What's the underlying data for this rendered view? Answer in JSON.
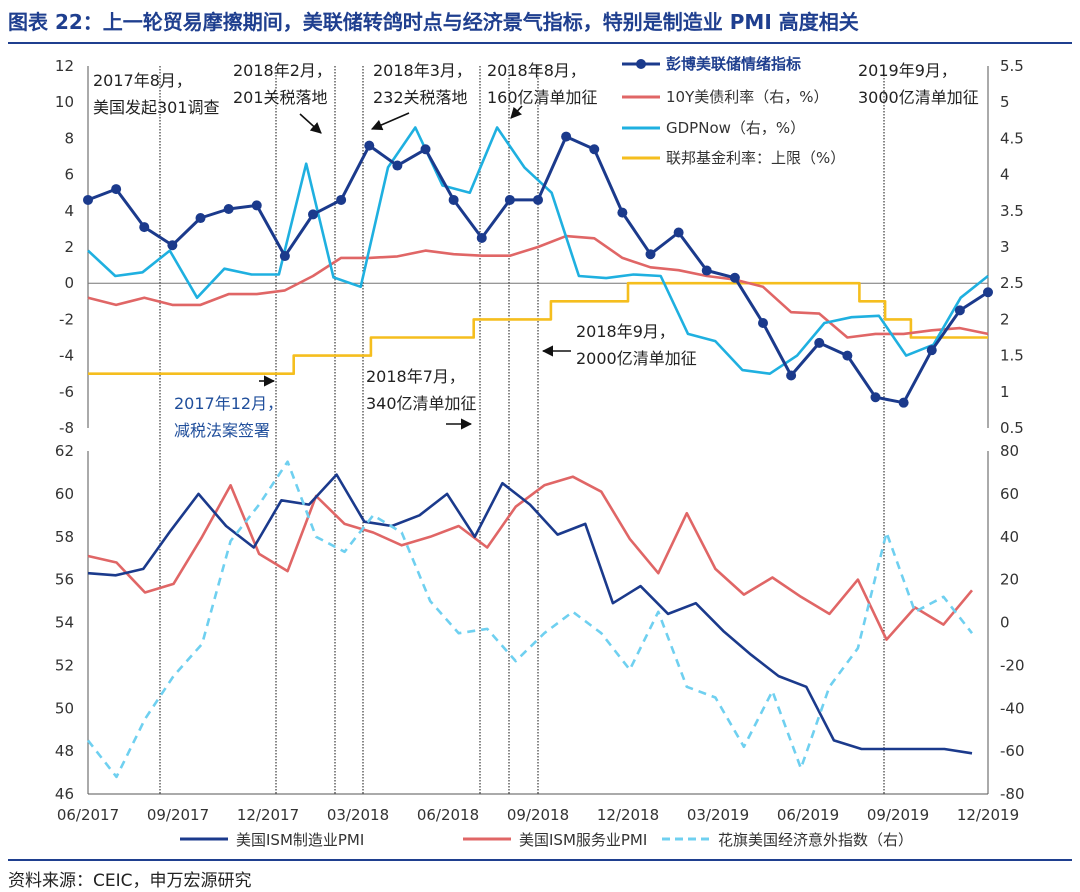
{
  "title": "图表 22：上一轮贸易摩擦期间，美联储转鸽时点与经济景气指标，特别是制造业 PMI 高度相关",
  "source": "资料来源：CEIC，申万宏源研究",
  "colors": {
    "navy": "#1b3a8c",
    "red": "#e06666",
    "cyan": "#1fb0e0",
    "gold": "#f5be1e",
    "lightcyan": "#6fd0f0",
    "title": "#1f3f8f",
    "axis": "#333333"
  },
  "chart_data": [
    {
      "id": "top",
      "type": "line",
      "x_tick_labels": [
        "06/2017",
        "09/2017",
        "12/2017",
        "03/2018",
        "06/2018",
        "09/2018",
        "12/2018",
        "03/2019",
        "06/2019",
        "09/2019",
        "12/2019"
      ],
      "y_left": {
        "min": -8,
        "max": 12,
        "step": 2,
        "ticks": [
          "-8",
          "-6",
          "-4",
          "-2",
          "0",
          "2",
          "4",
          "6",
          "8",
          "10",
          "12"
        ]
      },
      "y_right": {
        "min": 0.5,
        "max": 5.5,
        "step": 0.5,
        "ticks": [
          "0.5",
          "1",
          "1.5",
          "2",
          "2.5",
          "3",
          "3.5",
          "4",
          "4.5",
          "5",
          "5.5"
        ]
      },
      "series": [
        {
          "name": "彭博美联储情绪指标",
          "color": "navy",
          "axis": "left",
          "marker": true,
          "bold": true,
          "values": [
            4.6,
            5.2,
            3.1,
            2.1,
            3.6,
            4.1,
            4.3,
            1.5,
            3.8,
            4.6,
            7.6,
            6.5,
            7.4,
            4.6,
            2.5,
            4.6,
            4.6,
            8.1,
            7.4,
            3.9,
            1.6,
            2.8,
            0.7,
            0.3,
            -2.2,
            -5.1,
            -3.3,
            -4.0,
            -6.3,
            -6.6,
            -3.7,
            -1.5,
            -0.5
          ]
        },
        {
          "name": "10Y美债利率（右，%）",
          "color": "red",
          "axis": "right",
          "values": [
            2.3,
            2.2,
            2.3,
            2.2,
            2.2,
            2.35,
            2.35,
            2.4,
            2.6,
            2.85,
            2.85,
            2.87,
            2.95,
            2.9,
            2.88,
            2.88,
            3.0,
            3.15,
            3.12,
            2.85,
            2.72,
            2.68,
            2.6,
            2.55,
            2.45,
            2.1,
            2.08,
            1.75,
            1.8,
            1.8,
            1.85,
            1.88,
            1.8
          ]
        },
        {
          "name": "GDPNow（右，%）",
          "color": "cyan",
          "axis": "right",
          "values": [
            2.95,
            2.6,
            2.65,
            2.95,
            2.3,
            2.7,
            2.62,
            2.62,
            4.15,
            2.58,
            2.45,
            4.1,
            4.65,
            3.85,
            3.75,
            4.65,
            4.1,
            3.75,
            2.6,
            2.57,
            2.62,
            2.6,
            1.8,
            1.7,
            1.3,
            1.25,
            1.5,
            1.95,
            2.03,
            2.05,
            1.5,
            1.65,
            2.3,
            2.6
          ]
        },
        {
          "name": "联邦基金利率：上限（%）",
          "color": "gold",
          "axis": "right",
          "step": true,
          "values": [
            1.25,
            1.25,
            1.25,
            1.25,
            1.25,
            1.25,
            1.25,
            1.25,
            1.5,
            1.5,
            1.5,
            1.75,
            1.75,
            1.75,
            1.75,
            2.0,
            2.0,
            2.0,
            2.25,
            2.25,
            2.25,
            2.5,
            2.5,
            2.5,
            2.5,
            2.5,
            2.5,
            2.5,
            2.5,
            2.5,
            2.25,
            2.0,
            1.75,
            1.75,
            1.75,
            1.75
          ]
        }
      ],
      "legend": [
        "彭博美联储情绪指标",
        "10Y美债利率（右，%）",
        "GDPNow（右，%）",
        "联邦基金利率：上限（%）"
      ],
      "legend_position": "top-right",
      "annotations": [
        {
          "lines": [
            "2017年8月，",
            "美国发起301调查"
          ],
          "color": "#222222"
        },
        {
          "lines": [
            "2018年2月，",
            "201关税落地"
          ],
          "color": "#222222"
        },
        {
          "lines": [
            "2018年3月，",
            "232关税落地"
          ],
          "color": "#222222"
        },
        {
          "lines": [
            "2018年8月，",
            "160亿清单加征"
          ],
          "color": "#222222"
        },
        {
          "lines": [
            "2019年9月，",
            "3000亿清单加征"
          ],
          "color": "#222222"
        },
        {
          "lines": [
            "2018年9月，",
            "2000亿清单加征"
          ],
          "color": "#222222"
        },
        {
          "lines": [
            "2018年7月，",
            "340亿清单加征"
          ],
          "color": "#222222"
        },
        {
          "lines": [
            "2017年12月，",
            "减税法案签署"
          ],
          "color": "#1f4e9b"
        }
      ]
    },
    {
      "id": "bottom",
      "type": "line",
      "x_tick_labels": [
        "06/2017",
        "09/2017",
        "12/2017",
        "03/2018",
        "06/2018",
        "09/2018",
        "12/2018",
        "03/2019",
        "06/2019",
        "09/2019",
        "12/2019"
      ],
      "y_left": {
        "min": 46,
        "max": 62,
        "step": 2,
        "ticks": [
          "46",
          "48",
          "50",
          "52",
          "54",
          "56",
          "58",
          "60",
          "62"
        ]
      },
      "y_right": {
        "min": -80,
        "max": 80,
        "step": 20,
        "ticks": [
          "-80",
          "-60",
          "-40",
          "-20",
          "0",
          "20",
          "40",
          "60",
          "80"
        ]
      },
      "series": [
        {
          "name": "美国ISM制造业PMI",
          "color": "navy",
          "axis": "left",
          "values": [
            56.3,
            56.2,
            56.5,
            58.3,
            60.0,
            58.5,
            57.5,
            59.7,
            59.5,
            60.9,
            58.7,
            58.5,
            59.0,
            60.0,
            58.0,
            60.5,
            59.5,
            58.1,
            58.6,
            54.9,
            55.7,
            54.4,
            54.9,
            53.6,
            52.5,
            51.5,
            51.0,
            48.5,
            48.1,
            48.1,
            48.1,
            48.1,
            47.9
          ]
        },
        {
          "name": "美国ISM服务业PMI",
          "color": "red",
          "axis": "left",
          "values": [
            57.1,
            56.8,
            55.4,
            55.8,
            58.0,
            60.4,
            57.2,
            56.4,
            59.9,
            58.6,
            58.2,
            57.6,
            58.0,
            58.5,
            57.5,
            59.4,
            60.4,
            60.8,
            60.1,
            57.9,
            56.3,
            59.1,
            56.5,
            55.3,
            56.1,
            55.2,
            54.4,
            56.0,
            53.2,
            54.7,
            53.9,
            55.5
          ]
        },
        {
          "name": "花旗美国经济意外指数（右）",
          "color": "lightcyan",
          "axis": "right",
          "dashed": true,
          "values": [
            -55,
            -72,
            -45,
            -25,
            -10,
            38,
            55,
            75,
            40,
            33,
            50,
            42,
            10,
            -5,
            -3,
            -18,
            -5,
            5,
            -5,
            -22,
            5,
            -30,
            -35,
            -58,
            -32,
            -68,
            -30,
            -12,
            42,
            5,
            12,
            -5
          ]
        }
      ],
      "legend": [
        "美国ISM制造业PMI",
        "美国ISM服务业PMI",
        "花旗美国经济意外指数（右）"
      ],
      "legend_position": "bottom"
    }
  ]
}
